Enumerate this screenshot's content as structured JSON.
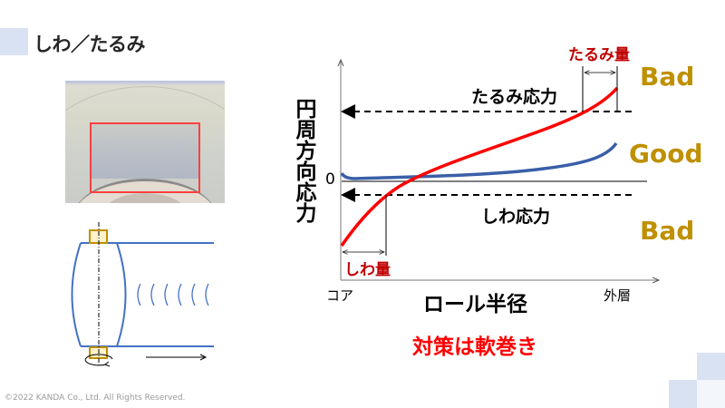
{
  "slide": {
    "title": "しわ／たるみ",
    "copyright": "©2022 KANDA Co., Ltd. All Rights Reserved.",
    "colors": {
      "accent_square": "#d9e2f3",
      "red": "#ff0000",
      "blue": "#3a5fa8",
      "gold": "#bf9000",
      "label_red": "#c00000"
    }
  },
  "chart": {
    "y_axis_label": "円周方向応力",
    "x_axis_label": "ロール半径",
    "x_start_label": "コア",
    "x_end_label": "外層",
    "zero_label": "0",
    "upper_threshold_label": "たるみ応力",
    "lower_threshold_label": "しわ応力",
    "slack_amount_label": "たるみ量",
    "wrinkle_amount_label": "しわ量",
    "zones": {
      "top": "Bad",
      "middle": "Good",
      "bottom": "Bad"
    }
  },
  "conclusion": "対策は軟巻き"
}
